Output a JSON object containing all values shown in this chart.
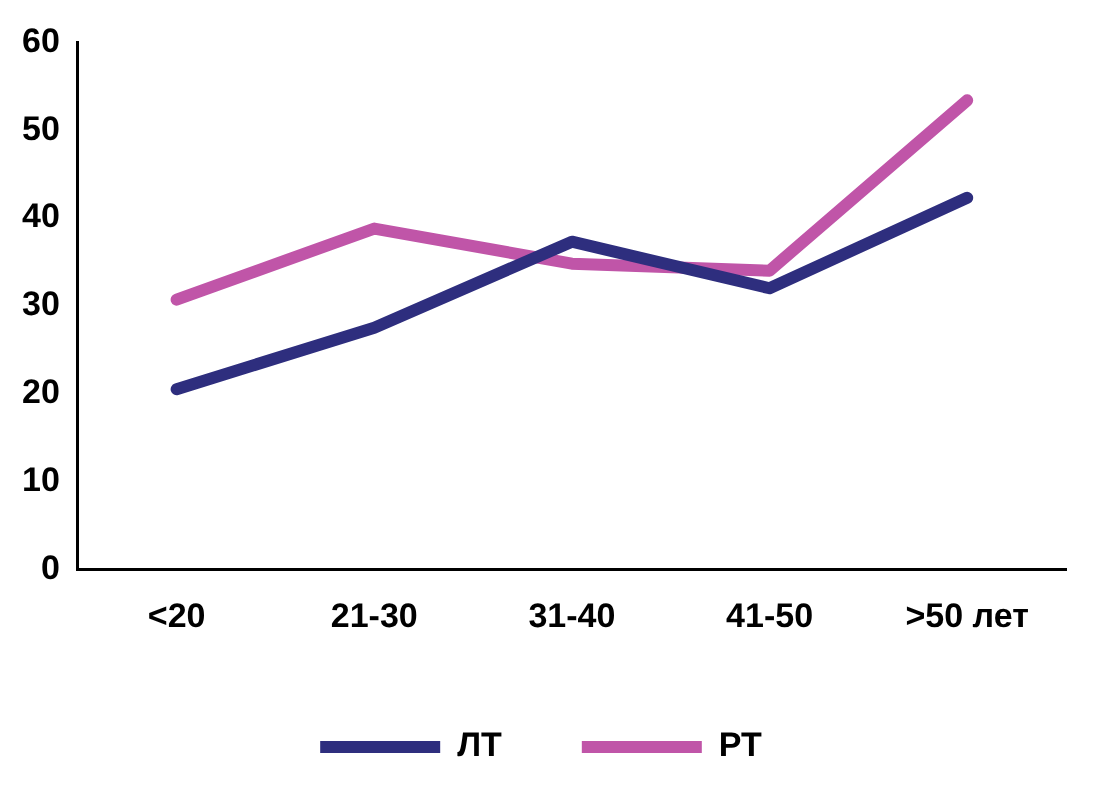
{
  "chart_data": {
    "type": "line",
    "categories": [
      "<20",
      "21-30",
      "31-40",
      "41-50",
      ">50 лет"
    ],
    "series": [
      {
        "name": "ЛТ",
        "color": "#2e2e7e",
        "values": [
          20.5,
          27.5,
          37.3,
          32,
          42.3
        ]
      },
      {
        "name": "РТ",
        "color": "#c055a8",
        "values": [
          30.7,
          38.8,
          34.8,
          34,
          53.4
        ]
      }
    ],
    "ylim": [
      0,
      60
    ],
    "yticks": [
      0,
      10,
      20,
      30,
      40,
      50,
      60
    ],
    "grid": false,
    "legend": "bottom",
    "marker": "none",
    "line_style": "solid"
  }
}
